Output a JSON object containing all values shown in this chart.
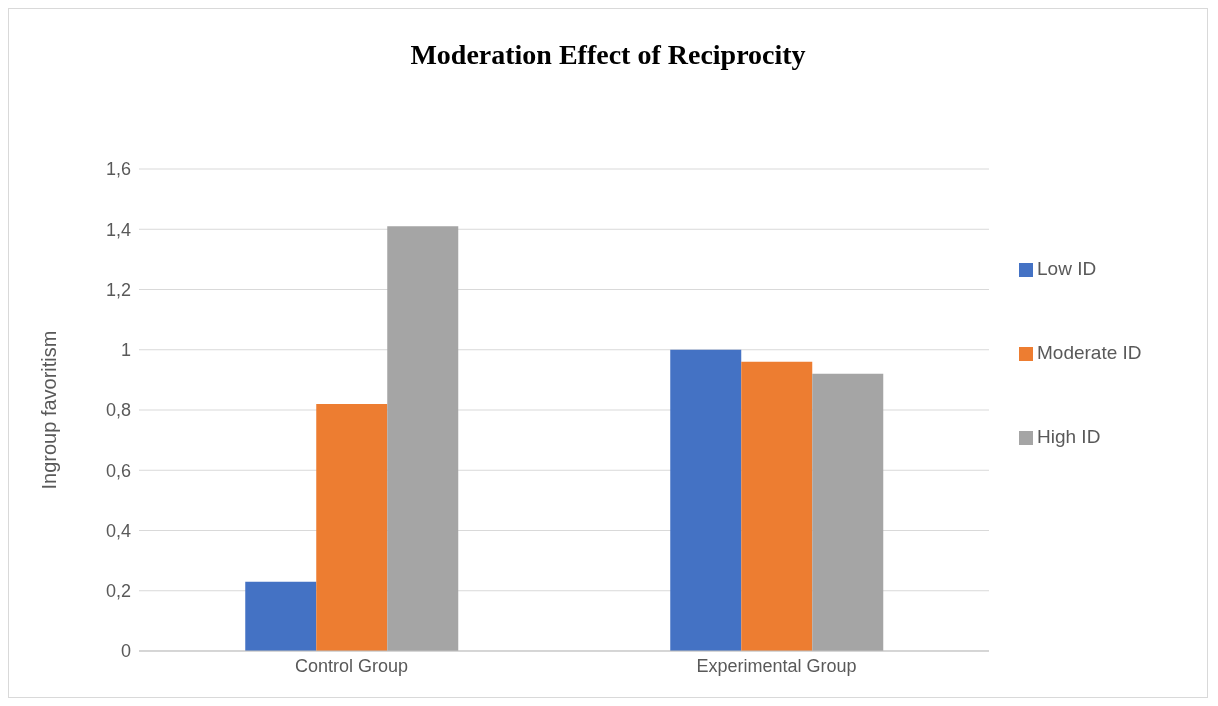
{
  "chart_data": {
    "type": "bar",
    "title": "Moderation Effect of Reciprocity",
    "ylabel": "Ingroup favoritism",
    "categories": [
      "Control Group",
      "Experimental Group"
    ],
    "series": [
      {
        "name": "Low ID",
        "color": "#4472c4",
        "values": [
          0.23,
          1.0
        ]
      },
      {
        "name": "Moderate ID",
        "color": "#ed7d31",
        "values": [
          0.82,
          0.96
        ]
      },
      {
        "name": "High ID",
        "color": "#a5a5a5",
        "values": [
          1.41,
          0.92
        ]
      }
    ],
    "ylim": [
      0,
      1.6
    ],
    "yticks": [
      0,
      {
        "value": 0.2,
        "label": "0,2"
      },
      {
        "value": 0.4,
        "label": "0,4"
      },
      {
        "value": 0.6,
        "label": "0,6"
      },
      {
        "value": 0.8,
        "label": "0,8"
      },
      1,
      {
        "value": 1.2,
        "label": "1,2"
      },
      {
        "value": 1.4,
        "label": "1,4"
      },
      {
        "value": 1.6,
        "label": "1,6"
      }
    ],
    "grid": "y",
    "legend": "right"
  }
}
